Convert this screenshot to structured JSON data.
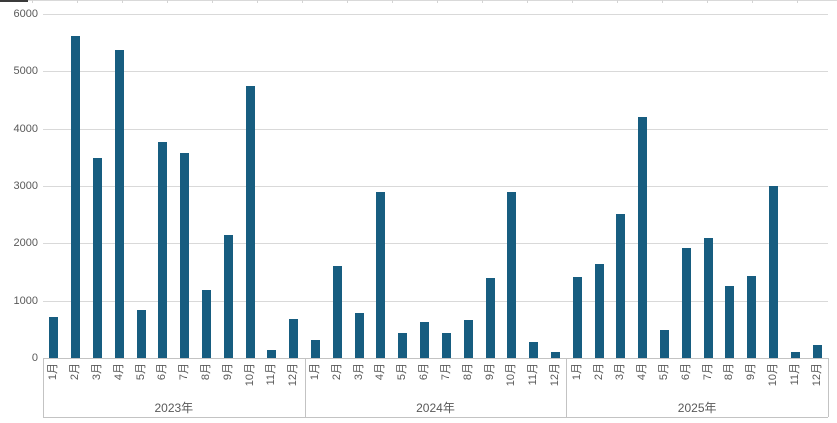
{
  "chart_data": {
    "type": "bar",
    "title": "",
    "legend": "none",
    "grid": true,
    "bar_color": "#175d80",
    "ylim": [
      0,
      6000
    ],
    "yticks": [
      0,
      1000,
      2000,
      3000,
      4000,
      5000,
      6000
    ],
    "months": [
      "1月",
      "2月",
      "3月",
      "4月",
      "5月",
      "6月",
      "7月",
      "8月",
      "9月",
      "10月",
      "11月",
      "12月"
    ],
    "groups": [
      {
        "year": "2023年",
        "values": [
          720,
          5620,
          3480,
          5380,
          840,
          3760,
          3570,
          1190,
          2140,
          4740,
          140,
          680
        ]
      },
      {
        "year": "2024年",
        "values": [
          310,
          1610,
          780,
          2890,
          430,
          620,
          430,
          670,
          1400,
          2900,
          280,
          110
        ]
      },
      {
        "year": "2025年",
        "values": [
          1420,
          1640,
          2520,
          4210,
          480,
          1920,
          2100,
          1250,
          1430,
          3000,
          110,
          220
        ]
      }
    ]
  },
  "colors": {
    "bar": "#175d80",
    "gridline": "#d9d9d9",
    "axis": "#c3c3c3",
    "text": "#595959"
  }
}
